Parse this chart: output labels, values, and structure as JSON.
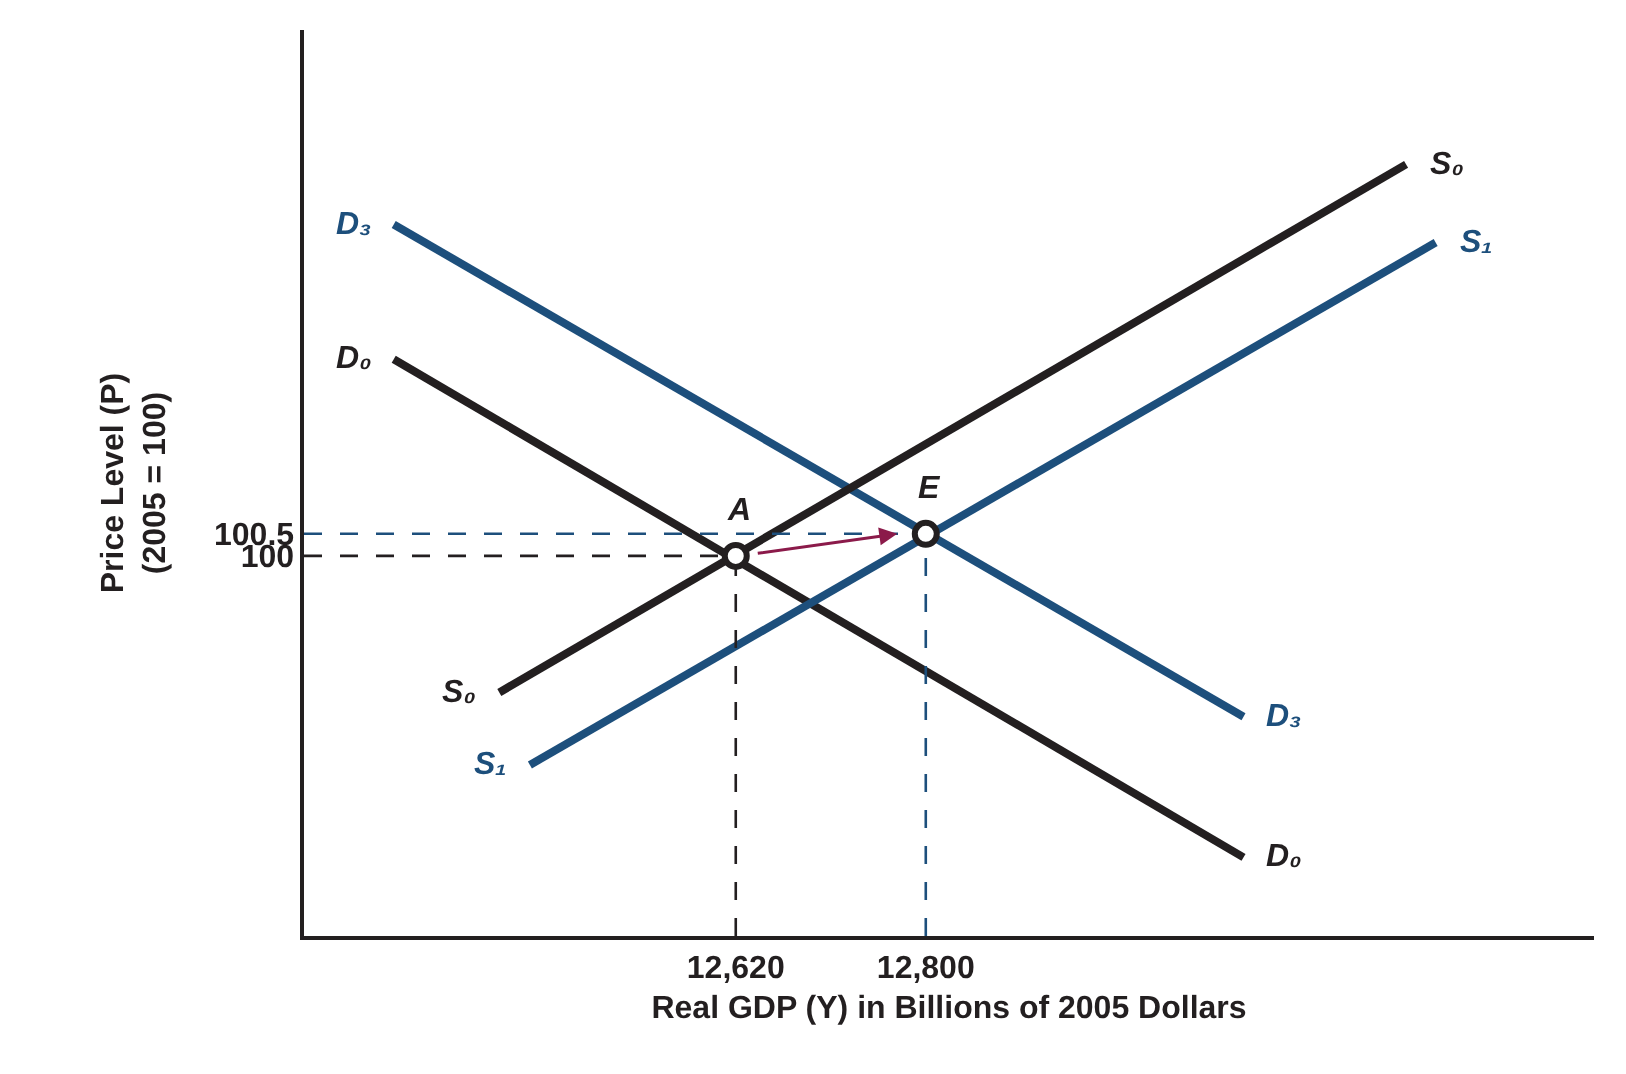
{
  "chart_data": {
    "type": "line",
    "xlabel": "Real GDP (Y) in Billions of 2005 Dollars",
    "ylabel": "Price Level (P)\n(2005 = 100)",
    "xlim": [
      12211,
      13433
    ],
    "ylim": [
      91.4,
      111.9
    ],
    "xticks": [
      {
        "value": 12620,
        "label": "12,620"
      },
      {
        "value": 12800,
        "label": "12,800"
      }
    ],
    "yticks": [
      100,
      100.5
    ],
    "series": [
      {
        "name": "D₃",
        "color": "#1d4f7c",
        "x": [
          12296,
          13101
        ],
        "values": [
          107.5,
          96.36
        ]
      },
      {
        "name": "D₀",
        "color": "#231f20",
        "x": [
          12296,
          13101
        ],
        "values": [
          104.45,
          93.18
        ]
      },
      {
        "name": "S₀",
        "color": "#231f20",
        "x": [
          12396,
          13255
        ],
        "values": [
          96.91,
          108.86
        ]
      },
      {
        "name": "S₁",
        "color": "#1d4f7c",
        "x": [
          12425,
          13283
        ],
        "values": [
          95.27,
          107.09
        ]
      },
      {
        "color": "#231f20",
        "x": [
          12620,
          12620
        ],
        "values": [
          91.4,
          100
        ],
        "line_style": "dashed"
      },
      {
        "color": "#231f20",
        "x": [
          12211,
          12620
        ],
        "values": [
          100,
          100
        ],
        "line_style": "dashed"
      },
      {
        "color": "#1d4f7c",
        "x": [
          12800,
          12800
        ],
        "values": [
          91.4,
          100.5
        ],
        "line_style": "dashed"
      },
      {
        "color": "#1d4f7c",
        "x": [
          12211,
          12800
        ],
        "values": [
          100.5,
          100.5
        ],
        "line_style": "dashed"
      },
      {
        "type": "scatter",
        "color": "#231f20",
        "x": [
          12620,
          12800
        ],
        "values": [
          100,
          100.5
        ],
        "marker": "circle"
      }
    ],
    "annotations": [
      {
        "text": "A",
        "x": 12620,
        "y": 100
      },
      {
        "text": "E",
        "x": 12800,
        "y": 100.5
      }
    ]
  }
}
